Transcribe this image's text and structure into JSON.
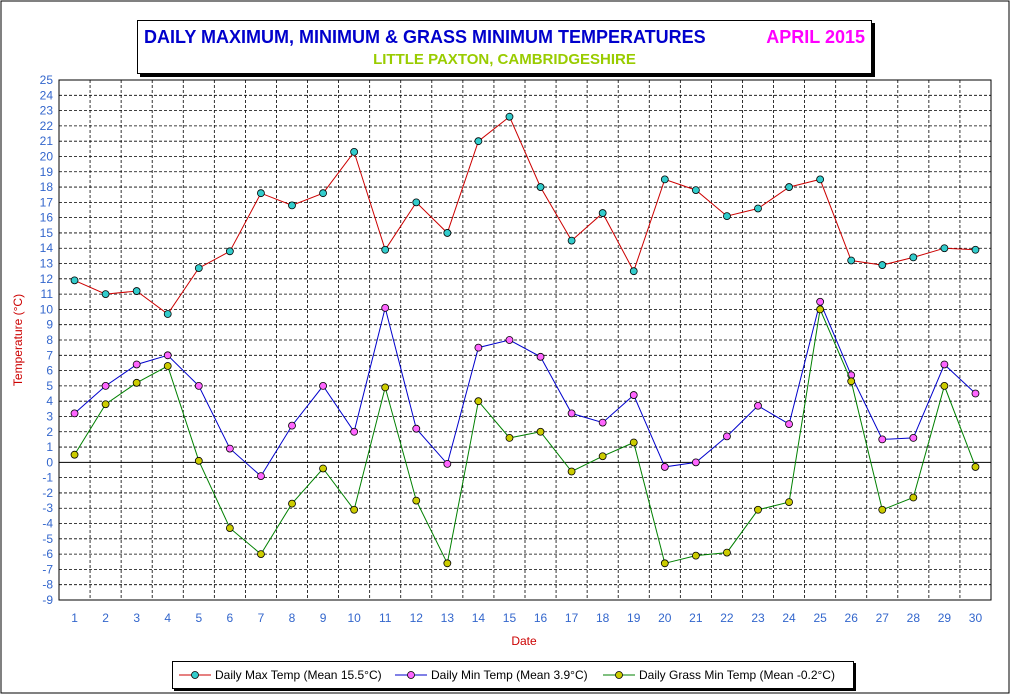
{
  "header": {
    "title": "DAILY MAXIMUM, MINIMUM & GRASS MINIMUM TEMPERATURES",
    "period": "APRIL 2015",
    "location": "LITTLE PAXTON, CAMBRIDGESHIRE"
  },
  "colors": {
    "max_line": "#cc0000",
    "max_marker": "#33cccc",
    "min_line": "#0000cc",
    "min_marker": "#ff66ff",
    "grass_line": "#008000",
    "grass_marker": "#cccc00",
    "axis_label": "#cc0000",
    "tick_label": "#3366cc"
  },
  "chart_data": {
    "type": "line",
    "xlabel": "Date",
    "ylabel": "Temperature (°C)",
    "ylim": [
      -9,
      25
    ],
    "x": [
      1,
      2,
      3,
      4,
      5,
      6,
      7,
      8,
      9,
      10,
      11,
      12,
      13,
      14,
      15,
      16,
      17,
      18,
      19,
      20,
      21,
      22,
      23,
      24,
      25,
      26,
      27,
      28,
      29,
      30
    ],
    "y_ticks": [
      25,
      24,
      23,
      22,
      21,
      20,
      19,
      18,
      17,
      16,
      15,
      14,
      13,
      12,
      11,
      10,
      9,
      8,
      7,
      6,
      5,
      4,
      3,
      2,
      1,
      0,
      -1,
      -2,
      -3,
      -4,
      -5,
      -6,
      -7,
      -8,
      -9
    ],
    "grid": true,
    "legend_position": "bottom",
    "series": [
      {
        "name": "Daily Max Temp (Mean 15.5°C)",
        "values": [
          11.9,
          11.0,
          11.2,
          9.7,
          12.7,
          13.8,
          17.6,
          16.8,
          17.6,
          20.3,
          13.9,
          17.0,
          15.0,
          21.0,
          22.6,
          18.0,
          14.5,
          16.3,
          12.5,
          18.5,
          17.8,
          16.1,
          16.6,
          18.0,
          18.5,
          13.2,
          12.9,
          13.4,
          14.0,
          13.9
        ]
      },
      {
        "name": "Daily Min Temp (Mean 3.9°C)",
        "values": [
          3.2,
          5.0,
          6.4,
          7.0,
          5.0,
          0.9,
          -0.9,
          2.4,
          5.0,
          2.0,
          10.1,
          2.2,
          -0.1,
          7.5,
          8.0,
          6.9,
          3.2,
          2.6,
          4.4,
          -0.3,
          0.0,
          1.7,
          3.7,
          2.5,
          10.5,
          5.7,
          1.5,
          1.6,
          6.4,
          4.5
        ]
      },
      {
        "name": "Daily Grass Min Temp (Mean -0.2°C)",
        "values": [
          0.5,
          3.8,
          5.2,
          6.3,
          0.1,
          -4.3,
          -6.0,
          -2.7,
          -0.4,
          -3.1,
          4.9,
          -2.5,
          -6.6,
          4.0,
          1.6,
          2.0,
          -0.6,
          0.4,
          1.3,
          -6.6,
          -6.1,
          -5.9,
          -3.1,
          -2.6,
          10.0,
          5.3,
          -3.1,
          -2.3,
          5.0,
          -0.3
        ]
      }
    ]
  }
}
